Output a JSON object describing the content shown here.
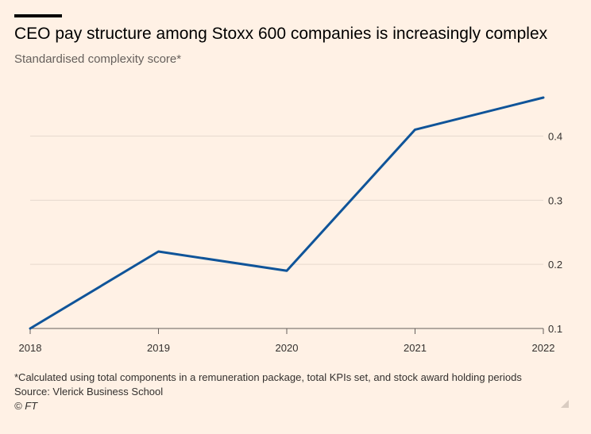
{
  "header": {
    "title": "CEO pay structure among Stoxx 600 companies is increasingly complex",
    "subtitle": "Standardised complexity score*"
  },
  "footer": {
    "note": "*Calculated using total components in a remuneration package, total KPIs set, and stock award holding periods",
    "source": "Source: Vlerick Business School",
    "credit": "© FT"
  },
  "colors": {
    "background": "#FFF1E5",
    "line": "#0F5499",
    "grid": "#E6D9CE",
    "text": "#33302E",
    "subtitle": "#66605C"
  },
  "chart_data": {
    "type": "line",
    "title": "CEO pay structure among Stoxx 600 companies is increasingly complex",
    "subtitle": "Standardised complexity score*",
    "xlabel": "",
    "ylabel": "",
    "x": [
      "2018",
      "2019",
      "2020",
      "2021",
      "2022"
    ],
    "series": [
      {
        "values": [
          0.1,
          0.22,
          0.19,
          0.41,
          0.46
        ]
      }
    ],
    "yticks": [
      0.1,
      0.2,
      0.3,
      0.4
    ],
    "ytick_labels": [
      "0.1",
      "0.2",
      "0.3",
      "0.4"
    ],
    "ylim": [
      0.1,
      0.47
    ],
    "y_axis_side": "right",
    "grid": true
  }
}
